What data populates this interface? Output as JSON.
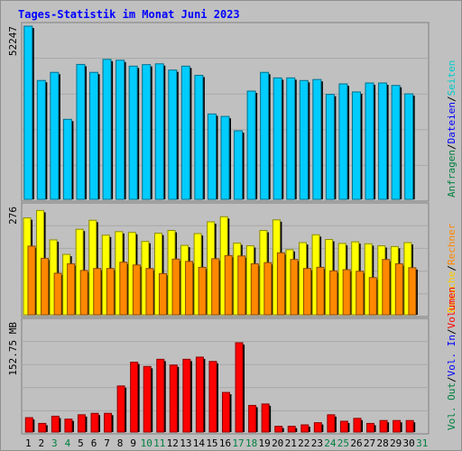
{
  "title": "Tages-Statistik im Monat Juni 2023",
  "colors": {
    "title": "#0000ff",
    "background": "#c0c0c0",
    "hits": "#00ccff",
    "files": "#0000ff",
    "pages": "#00cccc",
    "visits": "#ffff00",
    "sites": "#ff8800",
    "kbytes": "#ff0000",
    "weekend_day": "#008040",
    "weekday_day": "#000000",
    "slash": "#000000"
  },
  "right_label_panels": [
    {
      "parts": [
        {
          "text": "Anfragen",
          "color": "#008040"
        },
        {
          "text": "/"
        },
        {
          "text": "Dateien",
          "color": "#0000ff"
        },
        {
          "text": "/"
        },
        {
          "text": "Seiten",
          "color": "#00cccc"
        }
      ]
    },
    {
      "parts": [
        {
          "text": "Besuche",
          "color": "#ffcc00"
        },
        {
          "text": "/"
        },
        {
          "text": "Rechner",
          "color": "#ff8800"
        }
      ]
    },
    {
      "parts": [
        {
          "text": "Vol. Out",
          "color": "#008040"
        },
        {
          "text": "/"
        },
        {
          "text": "Vol. In",
          "color": "#0000ff"
        },
        {
          "text": "/"
        },
        {
          "text": "Volumen",
          "color": "#ff0000"
        }
      ]
    }
  ],
  "chart_data": [
    {
      "type": "bar",
      "panel": "hits",
      "y_label": "52247",
      "ylim": [
        0,
        52247
      ],
      "categories": [
        "1",
        "2",
        "3",
        "4",
        "5",
        "6",
        "7",
        "8",
        "9",
        "10",
        "11",
        "12",
        "13",
        "14",
        "15",
        "16",
        "17",
        "18",
        "19",
        "20",
        "21",
        "22",
        "23",
        "24",
        "25",
        "26",
        "27",
        "28",
        "29",
        "30"
      ],
      "series": [
        {
          "name": "Anfragen",
          "color": "#00ccff",
          "values": [
            52247,
            35860,
            38310,
            24140,
            40700,
            38310,
            42220,
            41970,
            40180,
            40640,
            40880,
            39010,
            40180,
            37420,
            25760,
            25010,
            20670,
            32660,
            38310,
            36640,
            36640,
            35840,
            36140,
            31660,
            34830,
            32400,
            35100,
            35100,
            34360,
            31820
          ]
        }
      ]
    },
    {
      "type": "bar",
      "panel": "visits",
      "y_label": "276",
      "ylim": [
        0,
        276
      ],
      "categories": [
        "1",
        "2",
        "3",
        "4",
        "5",
        "6",
        "7",
        "8",
        "9",
        "10",
        "11",
        "12",
        "13",
        "14",
        "15",
        "16",
        "17",
        "18",
        "19",
        "20",
        "21",
        "22",
        "23",
        "24",
        "25",
        "26",
        "27",
        "28",
        "29",
        "30"
      ],
      "series": [
        {
          "name": "Besuche",
          "color": "#ffff00",
          "values": [
            247,
            266,
            191,
            154,
            218,
            241,
            203,
            212,
            210,
            187,
            208,
            215,
            177,
            207,
            237,
            250,
            183,
            176,
            215,
            242,
            166,
            184,
            204,
            192,
            182,
            186,
            181,
            176,
            174,
            184
          ]
        },
        {
          "name": "Rechner",
          "color": "#ff8800",
          "values": [
            175,
            144,
            106,
            130,
            113,
            118,
            118,
            134,
            127,
            118,
            105,
            142,
            136,
            121,
            143,
            151,
            150,
            130,
            133,
            158,
            141,
            118,
            121,
            112,
            115,
            111,
            95,
            141,
            130,
            120
          ]
        }
      ]
    },
    {
      "type": "bar",
      "panel": "volume",
      "y_label": "152.75 MB",
      "ylim": [
        0,
        152.75
      ],
      "categories": [
        "1",
        "2",
        "3",
        "4",
        "5",
        "6",
        "7",
        "8",
        "9",
        "10",
        "11",
        "12",
        "13",
        "14",
        "15",
        "16",
        "17",
        "18",
        "19",
        "20",
        "21",
        "22",
        "23",
        "24",
        "25",
        "26",
        "27",
        "28",
        "29",
        "30"
      ],
      "series": [
        {
          "name": "Volumen",
          "color": "#ff0000",
          "values": [
            20,
            12,
            22,
            18,
            24,
            26,
            26,
            64,
            97,
            91,
            101,
            93,
            101,
            104,
            98,
            55,
            124,
            37,
            39,
            8,
            8,
            10,
            13,
            24,
            15,
            19,
            12,
            16,
            16,
            16
          ]
        }
      ]
    }
  ],
  "x_axis": {
    "labels": [
      "1",
      "2",
      "3",
      "4",
      "5",
      "6",
      "7",
      "8",
      "9",
      "10",
      "11",
      "12",
      "13",
      "14",
      "15",
      "16",
      "17",
      "18",
      "19",
      "20",
      "21",
      "22",
      "23",
      "24",
      "25",
      "26",
      "27",
      "28",
      "29",
      "30",
      "31"
    ],
    "weekend_days": [
      "3",
      "4",
      "10",
      "11",
      "17",
      "18",
      "24",
      "25",
      "31"
    ]
  }
}
